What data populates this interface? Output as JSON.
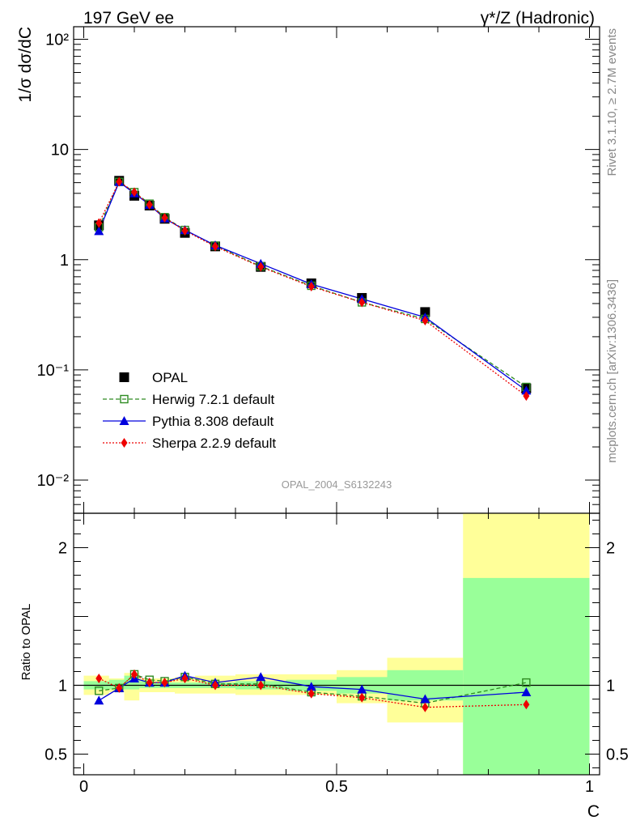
{
  "header": {
    "left": "197 GeV ee",
    "right": "γ*/Z (Hadronic)"
  },
  "side_labels": {
    "rivet": "Rivet 3.1.10, ≥ 2.7M events",
    "source": "mcplots.cern.ch [arXiv:1306.3436]"
  },
  "watermark": "OPAL_2004_S6132243",
  "colors": {
    "data": "#000000",
    "herwig": "#2e8b22",
    "pythia": "#0000dd",
    "sherpa": "#ee0000",
    "band_inner": "#99ff99",
    "band_outer": "#ffff99"
  },
  "chart_data": [
    {
      "type": "line",
      "ylabel": "1/σ dσ/dC",
      "yscale": "log",
      "ylim": [
        0.005,
        130
      ],
      "xlim": [
        -0.02,
        1.02
      ],
      "y_tick_labels": [
        "10⁻²",
        "10⁻¹",
        "1",
        "10",
        "10²"
      ],
      "x": [
        0.03,
        0.07,
        0.1,
        0.13,
        0.16,
        0.2,
        0.26,
        0.35,
        0.45,
        0.55,
        0.675,
        0.875
      ],
      "bin_edges": [
        0.0,
        0.05,
        0.08,
        0.11,
        0.14,
        0.18,
        0.22,
        0.3,
        0.4,
        0.5,
        0.6,
        0.75,
        1.0
      ],
      "legend": [
        "OPAL",
        "Herwig 7.2.1 default",
        "Pythia 8.308 default",
        "Sherpa 2.2.9 default"
      ],
      "legend_position": "bottom-left",
      "series": [
        {
          "name": "OPAL",
          "marker": "square",
          "values": [
            2.05,
            5.2,
            3.8,
            3.1,
            2.35,
            1.75,
            1.32,
            0.86,
            0.61,
            0.45,
            0.335,
            0.068
          ]
        },
        {
          "name": "Herwig 7.2.1 default",
          "marker": "open-square",
          "style": "dashed",
          "values": [
            1.97,
            5.08,
            4.1,
            3.22,
            2.43,
            1.86,
            1.34,
            0.87,
            0.58,
            0.41,
            0.29,
            0.07
          ]
        },
        {
          "name": "Pythia 8.308 default",
          "marker": "triangle",
          "style": "solid",
          "values": [
            1.82,
            5.08,
            4.0,
            3.15,
            2.37,
            1.86,
            1.35,
            0.92,
            0.6,
            0.44,
            0.3,
            0.065
          ]
        },
        {
          "name": "Sherpa 2.2.9 default",
          "marker": "diamond",
          "style": "dotted",
          "values": [
            2.15,
            5.1,
            4.1,
            3.15,
            2.4,
            1.83,
            1.32,
            0.86,
            0.57,
            0.41,
            0.28,
            0.058
          ]
        }
      ]
    },
    {
      "type": "line",
      "ylabel": "Ratio to OPAL",
      "xlabel": "C",
      "ylim": [
        0.35,
        2.25
      ],
      "xlim": [
        -0.02,
        1.02
      ],
      "y_ticks": [
        0.5,
        1,
        2
      ],
      "y_tick_labels": [
        "0.5",
        "1",
        "2"
      ],
      "x_ticks": [
        0,
        0.5,
        1
      ],
      "x_tick_labels": [
        "0",
        "0.5",
        "1"
      ],
      "x": [
        0.03,
        0.07,
        0.1,
        0.13,
        0.16,
        0.2,
        0.26,
        0.35,
        0.45,
        0.55,
        0.675,
        0.875
      ],
      "bands": {
        "bin_edges": [
          0.0,
          0.05,
          0.08,
          0.11,
          0.14,
          0.18,
          0.22,
          0.3,
          0.4,
          0.5,
          0.6,
          0.75,
          1.0
        ],
        "inner": [
          [
            0.97,
            1.03
          ],
          [
            0.97,
            1.04
          ],
          [
            0.97,
            1.07
          ],
          [
            0.98,
            1.03
          ],
          [
            0.98,
            1.02
          ],
          [
            0.98,
            1.02
          ],
          [
            0.98,
            1.02
          ],
          [
            0.97,
            1.03
          ],
          [
            0.96,
            1.04
          ],
          [
            0.94,
            1.06
          ],
          [
            0.89,
            1.11
          ],
          [
            0.35,
            1.78
          ]
        ],
        "outer": [
          [
            0.93,
            1.07
          ],
          [
            0.95,
            1.05
          ],
          [
            0.89,
            1.09
          ],
          [
            0.95,
            1.05
          ],
          [
            0.95,
            1.05
          ],
          [
            0.94,
            1.06
          ],
          [
            0.94,
            1.07
          ],
          [
            0.93,
            1.08
          ],
          [
            0.93,
            1.08
          ],
          [
            0.87,
            1.11
          ],
          [
            0.73,
            1.2
          ],
          [
            0.35,
            2.25
          ]
        ]
      },
      "series": [
        {
          "name": "Herwig 7.2.1 default",
          "values": [
            0.96,
            0.98,
            1.08,
            1.04,
            1.03,
            1.06,
            1.01,
            1.01,
            0.95,
            0.92,
            0.87,
            1.02
          ]
        },
        {
          "name": "Pythia 8.308 default",
          "values": [
            0.89,
            0.98,
            1.05,
            1.02,
            1.02,
            1.07,
            1.02,
            1.06,
            0.99,
            0.97,
            0.9,
            0.95
          ]
        },
        {
          "name": "Sherpa 2.2.9 default",
          "values": [
            1.05,
            0.98,
            1.08,
            1.02,
            1.02,
            1.05,
            1.0,
            1.0,
            0.94,
            0.91,
            0.84,
            0.86
          ]
        }
      ]
    }
  ]
}
